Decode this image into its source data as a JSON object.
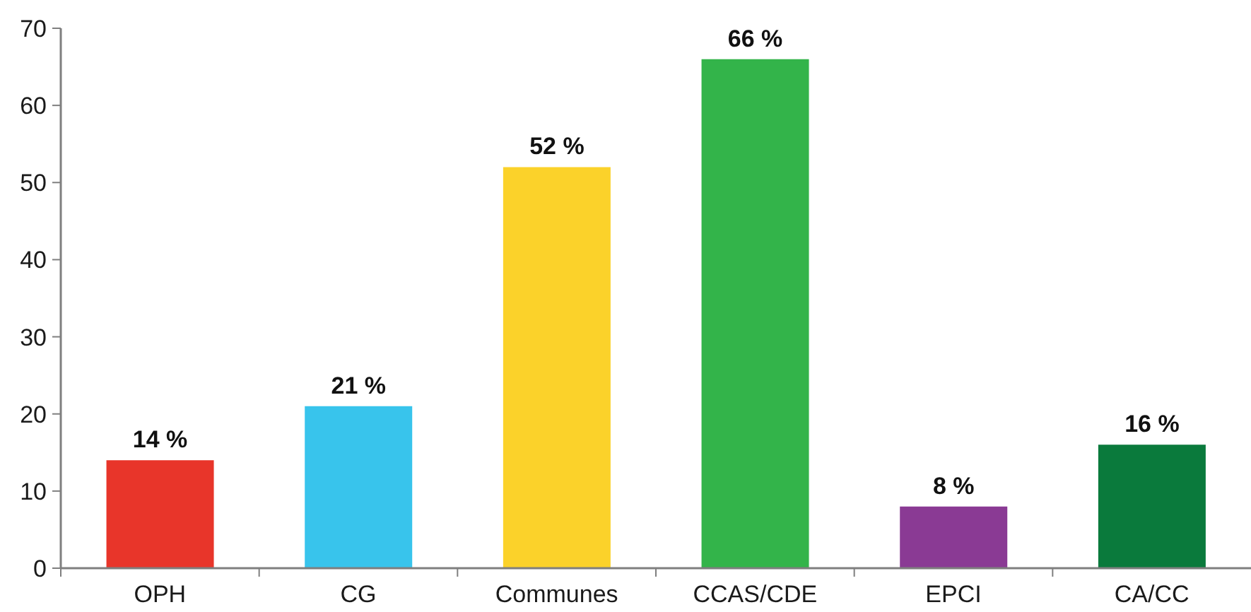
{
  "chart_data": {
    "type": "bar",
    "categories": [
      "OPH",
      "CG",
      "Communes",
      "CCAS/CDE",
      "EPCI",
      "CA/CC"
    ],
    "values": [
      14,
      21,
      52,
      66,
      8,
      16
    ],
    "colors": [
      "#e8352a",
      "#38c4ec",
      "#fbd22a",
      "#33b44a",
      "#8a3a94",
      "#0a7a3c"
    ],
    "value_labels": [
      "14 %",
      "21 %",
      "52 %",
      "66 %",
      "8 %",
      "16 %"
    ],
    "ylim": [
      0,
      70
    ],
    "yticks": [
      0,
      10,
      20,
      30,
      40,
      50,
      60,
      70
    ]
  }
}
